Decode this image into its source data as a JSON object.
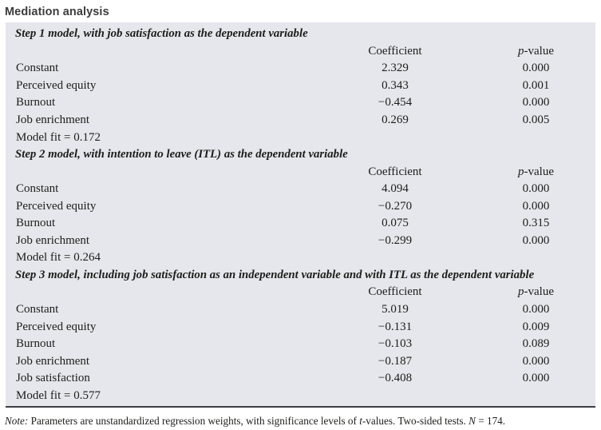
{
  "title": "Mediation analysis",
  "colors": {
    "table_background": "#e5e7ec",
    "text": "#1d1d1b",
    "title_text": "#3c3c3c",
    "bottom_rule": "#3b3e42"
  },
  "table": {
    "col_headers": {
      "coefficient": "Coefficient",
      "p_italic": "p",
      "p_rest": "-value"
    },
    "sections": [
      {
        "heading": "Step 1 model, with job satisfaction as the dependent variable",
        "rows": [
          {
            "label": "Constant",
            "coefficient": "2.329",
            "p_value": "0.000"
          },
          {
            "label": "Perceived equity",
            "coefficient": "0.343",
            "p_value": "0.001"
          },
          {
            "label": "Burnout",
            "coefficient": "−0.454",
            "p_value": "0.000"
          },
          {
            "label": "Job enrichment",
            "coefficient": "0.269",
            "p_value": "0.005"
          }
        ],
        "model_fit": "Model fit = 0.172"
      },
      {
        "heading": "Step 2 model, with intention to leave (ITL) as the dependent variable",
        "rows": [
          {
            "label": "Constant",
            "coefficient": "4.094",
            "p_value": "0.000"
          },
          {
            "label": "Perceived equity",
            "coefficient": "−0.270",
            "p_value": "0.000"
          },
          {
            "label": "Burnout",
            "coefficient": "0.075",
            "p_value": "0.315"
          },
          {
            "label": "Job enrichment",
            "coefficient": "−0.299",
            "p_value": "0.000"
          }
        ],
        "model_fit": "Model fit = 0.264"
      },
      {
        "heading": "Step 3 model, including job satisfaction as an independent variable and with ITL as the dependent variable",
        "rows": [
          {
            "label": "Constant",
            "coefficient": "5.019",
            "p_value": "0.000"
          },
          {
            "label": "Perceived equity",
            "coefficient": "−0.131",
            "p_value": "0.009"
          },
          {
            "label": "Burnout",
            "coefficient": "−0.103",
            "p_value": "0.089"
          },
          {
            "label": "Job enrichment",
            "coefficient": "−0.187",
            "p_value": "0.000"
          },
          {
            "label": "Job satisfaction",
            "coefficient": "−0.408",
            "p_value": "0.000"
          }
        ],
        "model_fit": "Model fit = 0.577"
      }
    ]
  },
  "note": {
    "label": "Note:",
    "part1": " Parameters are unstandardized regression weights, with significance levels of ",
    "t_italic": "t",
    "part2": "-values. Two-sided tests. ",
    "n_italic": "N",
    "part3": " = 174."
  }
}
